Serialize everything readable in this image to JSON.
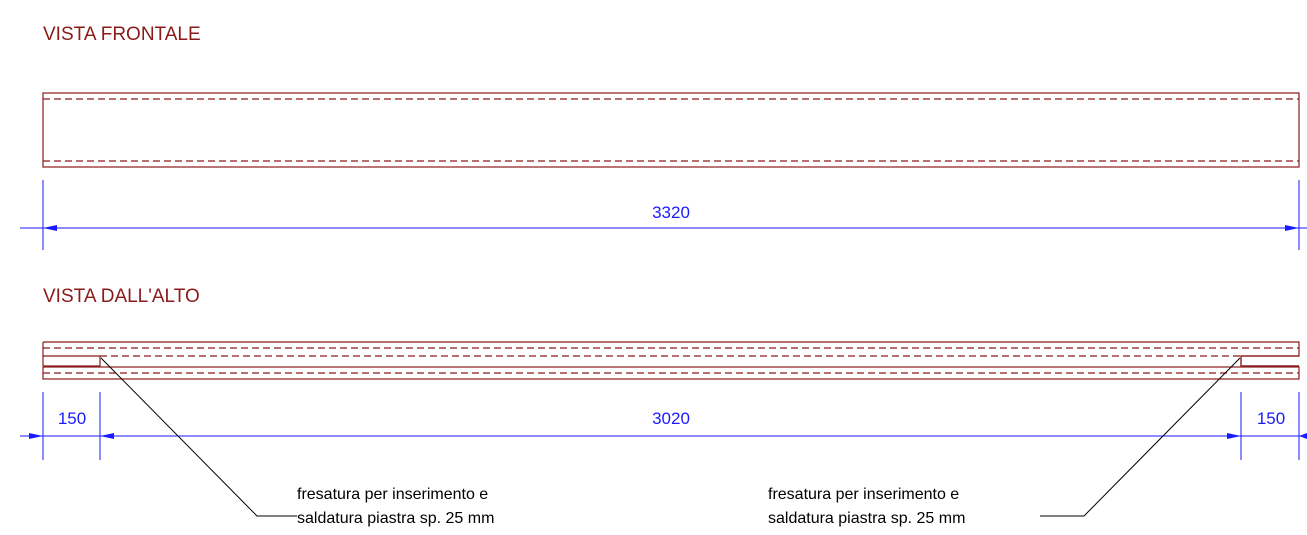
{
  "views": {
    "front": {
      "title": "VISTA FRONTALE"
    },
    "top": {
      "title": "VISTA DALL'ALTO"
    }
  },
  "dimensions": {
    "front_total": "3320",
    "top_left": "150",
    "top_middle": "3020",
    "top_right": "150"
  },
  "notes": {
    "left": {
      "line1": "fresatura per inserimento e",
      "line2": "saldatura piastra sp. 25 mm"
    },
    "right": {
      "line1": "fresatura per inserimento e",
      "line2": "saldatura piastra sp. 25 mm"
    }
  },
  "colors": {
    "outline": "#8b1a1a",
    "dimension": "#1a1aff",
    "leader": "#000000"
  }
}
